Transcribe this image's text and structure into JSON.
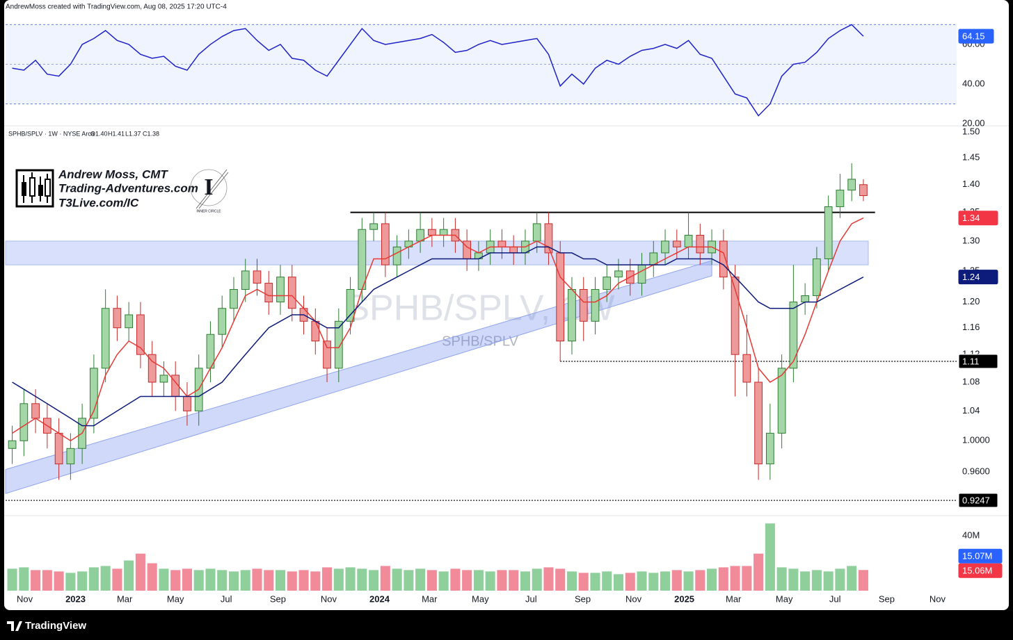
{
  "header": "AndrewMoss created with TradingView.com, Aug 08, 2025 17:20 UTC-4",
  "footer": "TradingView",
  "logo": {
    "lines": [
      "Andrew Moss, CMT",
      "Trading-Adventures.com",
      "T3Live.com/IC"
    ],
    "badge": "INNER CIRCLE"
  },
  "chart_data": {
    "type": "candlestick",
    "title": "SPHB/SPLV, 1W",
    "subtitle": "SPHB/SPLV",
    "legend": {
      "symbol": "SPHB/SPLV · 1W · NYSE Arca",
      "ohlc": [
        "O1.40",
        "H1.41",
        "L1.37",
        "C1.38"
      ]
    },
    "x": [
      "2022-10-17",
      "2022-10-31",
      "2022-11-14",
      "2022-11-28",
      "2022-12-12",
      "2022-12-26",
      "2023-01-09",
      "2023-01-23",
      "2023-02-06",
      "2023-02-20",
      "2023-03-06",
      "2023-03-20",
      "2023-04-03",
      "2023-04-17",
      "2023-05-01",
      "2023-05-15",
      "2023-05-29",
      "2023-06-12",
      "2023-06-26",
      "2023-07-10",
      "2023-07-24",
      "2023-08-07",
      "2023-08-21",
      "2023-09-04",
      "2023-09-18",
      "2023-10-02",
      "2023-10-16",
      "2023-10-30",
      "2023-11-13",
      "2023-11-27",
      "2023-12-11",
      "2023-12-25",
      "2024-01-08",
      "2024-01-22",
      "2024-02-05",
      "2024-02-19",
      "2024-03-04",
      "2024-03-18",
      "2024-04-01",
      "2024-04-15",
      "2024-04-29",
      "2024-05-13",
      "2024-05-27",
      "2024-06-10",
      "2024-06-24",
      "2024-07-08",
      "2024-07-22",
      "2024-08-05",
      "2024-08-19",
      "2024-09-02",
      "2024-09-16",
      "2024-09-30",
      "2024-10-14",
      "2024-10-28",
      "2024-11-11",
      "2024-11-25",
      "2024-12-09",
      "2024-12-23",
      "2025-01-06",
      "2025-01-20",
      "2025-02-03",
      "2025-02-17",
      "2025-03-03",
      "2025-03-17",
      "2025-03-31",
      "2025-04-14",
      "2025-04-28",
      "2025-05-12",
      "2025-05-26",
      "2025-06-09",
      "2025-06-23",
      "2025-07-07",
      "2025-07-21",
      "2025-08-04"
    ],
    "open": [
      0.99,
      1.0,
      1.05,
      1.03,
      1.01,
      0.97,
      0.99,
      1.03,
      1.1,
      1.19,
      1.16,
      1.18,
      1.12,
      1.08,
      1.09,
      1.06,
      1.04,
      1.1,
      1.15,
      1.19,
      1.22,
      1.25,
      1.23,
      1.2,
      1.24,
      1.19,
      1.17,
      1.14,
      1.1,
      1.17,
      1.22,
      1.32,
      1.33,
      1.26,
      1.29,
      1.3,
      1.32,
      1.31,
      1.32,
      1.3,
      1.27,
      1.28,
      1.3,
      1.29,
      1.28,
      1.3,
      1.33,
      1.28,
      1.14,
      1.22,
      1.17,
      1.22,
      1.24,
      1.25,
      1.23,
      1.26,
      1.28,
      1.3,
      1.29,
      1.31,
      1.28,
      1.3,
      1.24,
      1.12,
      1.08,
      0.97,
      1.01,
      1.1,
      1.2,
      1.21,
      1.27,
      1.36,
      1.39,
      1.4
    ],
    "high": [
      1.02,
      1.07,
      1.07,
      1.05,
      1.03,
      1.01,
      1.05,
      1.12,
      1.22,
      1.21,
      1.2,
      1.2,
      1.14,
      1.11,
      1.11,
      1.08,
      1.12,
      1.17,
      1.21,
      1.24,
      1.27,
      1.27,
      1.25,
      1.26,
      1.26,
      1.21,
      1.19,
      1.16,
      1.19,
      1.24,
      1.34,
      1.35,
      1.35,
      1.31,
      1.32,
      1.35,
      1.34,
      1.34,
      1.34,
      1.32,
      1.3,
      1.32,
      1.32,
      1.31,
      1.32,
      1.35,
      1.35,
      1.3,
      1.24,
      1.24,
      1.24,
      1.26,
      1.27,
      1.27,
      1.28,
      1.3,
      1.32,
      1.32,
      1.35,
      1.33,
      1.32,
      1.32,
      1.26,
      1.18,
      1.1,
      1.05,
      1.12,
      1.26,
      1.23,
      1.29,
      1.38,
      1.42,
      1.44,
      1.41
    ],
    "low": [
      0.97,
      0.98,
      1.01,
      0.99,
      0.95,
      0.95,
      0.97,
      1.01,
      1.08,
      1.14,
      1.14,
      1.1,
      1.06,
      1.06,
      1.04,
      1.02,
      1.02,
      1.08,
      1.13,
      1.17,
      1.2,
      1.21,
      1.18,
      1.18,
      1.17,
      1.15,
      1.12,
      1.08,
      1.08,
      1.15,
      1.2,
      1.3,
      1.24,
      1.24,
      1.27,
      1.28,
      1.29,
      1.29,
      1.28,
      1.25,
      1.25,
      1.26,
      1.27,
      1.26,
      1.26,
      1.28,
      1.26,
      1.11,
      1.12,
      1.14,
      1.15,
      1.2,
      1.22,
      1.21,
      1.21,
      1.24,
      1.26,
      1.27,
      1.27,
      1.26,
      1.26,
      1.22,
      1.06,
      1.06,
      0.95,
      0.95,
      0.99,
      1.08,
      1.18,
      1.19,
      1.25,
      1.34,
      1.37,
      1.37
    ],
    "close": [
      1.0,
      1.05,
      1.03,
      1.01,
      0.97,
      0.99,
      1.03,
      1.1,
      1.19,
      1.16,
      1.18,
      1.12,
      1.08,
      1.09,
      1.06,
      1.04,
      1.1,
      1.15,
      1.19,
      1.22,
      1.25,
      1.23,
      1.2,
      1.24,
      1.19,
      1.17,
      1.14,
      1.1,
      1.17,
      1.22,
      1.32,
      1.33,
      1.26,
      1.29,
      1.3,
      1.32,
      1.31,
      1.32,
      1.3,
      1.27,
      1.28,
      1.3,
      1.29,
      1.28,
      1.3,
      1.33,
      1.28,
      1.14,
      1.22,
      1.17,
      1.22,
      1.24,
      1.25,
      1.23,
      1.26,
      1.28,
      1.3,
      1.29,
      1.31,
      1.28,
      1.3,
      1.24,
      1.12,
      1.08,
      0.97,
      1.01,
      1.1,
      1.2,
      1.21,
      1.27,
      1.36,
      1.39,
      1.41,
      1.38
    ],
    "up_color": "#a5d6a7",
    "up_edge": "#2e7d32",
    "down_color": "#ef9a9a",
    "down_edge": "#c62828",
    "overlays": [
      {
        "color": "#e53935",
        "values": [
          1.01,
          1.02,
          1.03,
          1.02,
          1.01,
          1.0,
          1.01,
          1.04,
          1.09,
          1.12,
          1.14,
          1.13,
          1.11,
          1.1,
          1.08,
          1.06,
          1.07,
          1.1,
          1.13,
          1.17,
          1.21,
          1.22,
          1.21,
          1.21,
          1.21,
          1.19,
          1.17,
          1.13,
          1.13,
          1.16,
          1.22,
          1.27,
          1.27,
          1.28,
          1.29,
          1.3,
          1.31,
          1.31,
          1.31,
          1.29,
          1.28,
          1.29,
          1.29,
          1.29,
          1.29,
          1.3,
          1.29,
          1.24,
          1.22,
          1.2,
          1.2,
          1.21,
          1.23,
          1.24,
          1.25,
          1.26,
          1.27,
          1.28,
          1.29,
          1.29,
          1.29,
          1.28,
          1.22,
          1.16,
          1.1,
          1.08,
          1.09,
          1.11,
          1.15,
          1.2,
          1.25,
          1.3,
          1.33,
          1.34
        ]
      },
      {
        "color": "#0d1b7a",
        "values": [
          1.08,
          1.07,
          1.06,
          1.05,
          1.04,
          1.03,
          1.02,
          1.02,
          1.03,
          1.04,
          1.05,
          1.06,
          1.06,
          1.06,
          1.06,
          1.06,
          1.06,
          1.07,
          1.08,
          1.1,
          1.12,
          1.14,
          1.16,
          1.17,
          1.18,
          1.18,
          1.17,
          1.16,
          1.16,
          1.18,
          1.2,
          1.22,
          1.23,
          1.24,
          1.25,
          1.26,
          1.27,
          1.27,
          1.27,
          1.27,
          1.27,
          1.28,
          1.28,
          1.28,
          1.28,
          1.29,
          1.29,
          1.28,
          1.28,
          1.27,
          1.27,
          1.26,
          1.26,
          1.26,
          1.26,
          1.26,
          1.26,
          1.27,
          1.27,
          1.27,
          1.27,
          1.26,
          1.24,
          1.22,
          1.2,
          1.19,
          1.19,
          1.19,
          1.2,
          1.2,
          1.21,
          1.22,
          1.23,
          1.24
        ]
      }
    ],
    "log": true,
    "ylim": [
      0.908,
      1.514
    ],
    "yticks": [
      {
        "value": 1.5,
        "label": "1.50"
      },
      1.45,
      {
        "value": 1.4,
        "label": "1.40"
      },
      1.35,
      {
        "value": 1.3,
        "label": "1.30"
      },
      1.25,
      {
        "value": 1.2,
        "label": "1.20"
      },
      1.16,
      1.12,
      1.08,
      1.04,
      {
        "value": 1,
        "label": "1.0000"
      },
      {
        "value": 0.96,
        "label": "0.9600"
      }
    ],
    "xlim": [
      "2022-10-09",
      "2025-11-24"
    ],
    "xticks": [
      {
        "value": "2022-11-01",
        "label": "Nov"
      },
      {
        "value": "2023-01-01",
        "label": "2023"
      },
      {
        "value": "2023-03-01",
        "label": "Mar"
      },
      {
        "value": "2023-05-01",
        "label": "May"
      },
      {
        "value": "2023-07-01",
        "label": "Jul"
      },
      {
        "value": "2023-09-01",
        "label": "Sep"
      },
      {
        "value": "2023-11-01",
        "label": "Nov"
      },
      {
        "value": "2024-01-01",
        "label": "2024"
      },
      {
        "value": "2024-03-01",
        "label": "Mar"
      },
      {
        "value": "2024-05-01",
        "label": "May"
      },
      {
        "value": "2024-07-01",
        "label": "Jul"
      },
      {
        "value": "2024-09-01",
        "label": "Sep"
      },
      {
        "value": "2024-11-01",
        "label": "Nov"
      },
      {
        "value": "2025-01-01",
        "label": "2025"
      },
      {
        "value": "2025-03-01",
        "label": "Mar"
      },
      {
        "value": "2025-05-01",
        "label": "May"
      },
      {
        "value": "2025-07-01",
        "label": "Jul"
      },
      {
        "value": "2025-09-01",
        "label": "Sep"
      },
      {
        "value": "2025-11-01",
        "label": "Nov"
      }
    ],
    "zone": [
      1.26,
      1.3
    ],
    "channel": {
      "x": [
        "2022-10-09",
        "2025-02-03"
      ],
      "upper": [
        0.963,
        1.267
      ],
      "lower": [
        0.933,
        1.242
      ]
    },
    "levels": [
      {
        "value": 1.35,
        "from": "2023-11-27",
        "to": "2025-08-18",
        "style": "solid"
      },
      {
        "value": 1.11,
        "from": "2024-08-05",
        "to": "2025-11-24",
        "style": "dotted"
      },
      {
        "value": 0.9247,
        "from": "2022-10-09",
        "to": "2025-11-24",
        "style": "dotted"
      }
    ],
    "badges": [
      {
        "value": 1.34,
        "color": "#f23645"
      },
      {
        "value": 1.24,
        "color": "#0d1b7a"
      },
      {
        "value": 1.11,
        "color": "#000000"
      },
      {
        "value": 0.9247,
        "color": "#000000"
      }
    ],
    "rsi": {
      "type": "line",
      "color": "#1e22c8",
      "values": [
        48,
        47,
        52,
        45,
        44,
        50,
        60,
        63,
        67,
        62,
        60,
        55,
        53,
        54,
        49,
        47,
        55,
        60,
        64,
        67,
        68,
        62,
        57,
        60,
        53,
        52,
        47,
        44,
        52,
        60,
        68,
        62,
        60,
        61,
        62,
        63,
        65,
        61,
        56,
        57,
        60,
        62,
        60,
        61,
        62,
        63,
        55,
        39,
        45,
        40,
        48,
        52,
        50,
        54,
        57,
        58,
        60,
        58,
        62,
        55,
        53,
        44,
        35,
        33,
        24,
        30,
        44,
        50,
        51,
        56,
        63,
        67,
        70,
        64.15
      ],
      "ylim": [
        19.3,
        71.9
      ],
      "yticks": [
        {
          "value": 60,
          "label": "60.00"
        },
        {
          "value": 40,
          "label": "40.00"
        },
        {
          "value": 20,
          "label": "20.00"
        }
      ],
      "bands": [
        30,
        70
      ],
      "mid": 50,
      "badge": {
        "value": 64.15,
        "color": "#2962ff"
      }
    },
    "volume": {
      "type": "bar",
      "values": [
        16,
        17,
        15,
        15,
        14,
        13,
        14,
        17,
        18,
        16,
        22,
        27,
        20,
        16,
        15,
        16,
        15,
        16,
        15,
        14,
        15,
        16,
        15,
        15,
        14,
        15,
        14,
        17,
        16,
        17,
        16,
        15,
        18,
        16,
        15,
        16,
        15,
        14,
        16,
        15,
        15,
        14,
        15,
        15,
        14,
        16,
        17,
        16,
        14,
        13,
        13,
        14,
        12,
        13,
        14,
        13,
        14,
        15,
        14,
        15,
        16,
        17,
        18,
        18,
        27,
        49,
        17,
        16,
        14,
        15,
        14,
        16,
        18,
        15.06
      ],
      "up_color": "#8fcf9c",
      "down_color": "#f28b99",
      "ylim": [
        0,
        54.7
      ],
      "yticks": [
        {
          "value": 40,
          "label": "40M"
        }
      ],
      "badges": [
        {
          "value": 15.07,
          "label": "15.07M",
          "color": "#2962ff"
        },
        {
          "value": 15.06,
          "label": "15.06M",
          "color": "#f23645"
        }
      ]
    }
  }
}
